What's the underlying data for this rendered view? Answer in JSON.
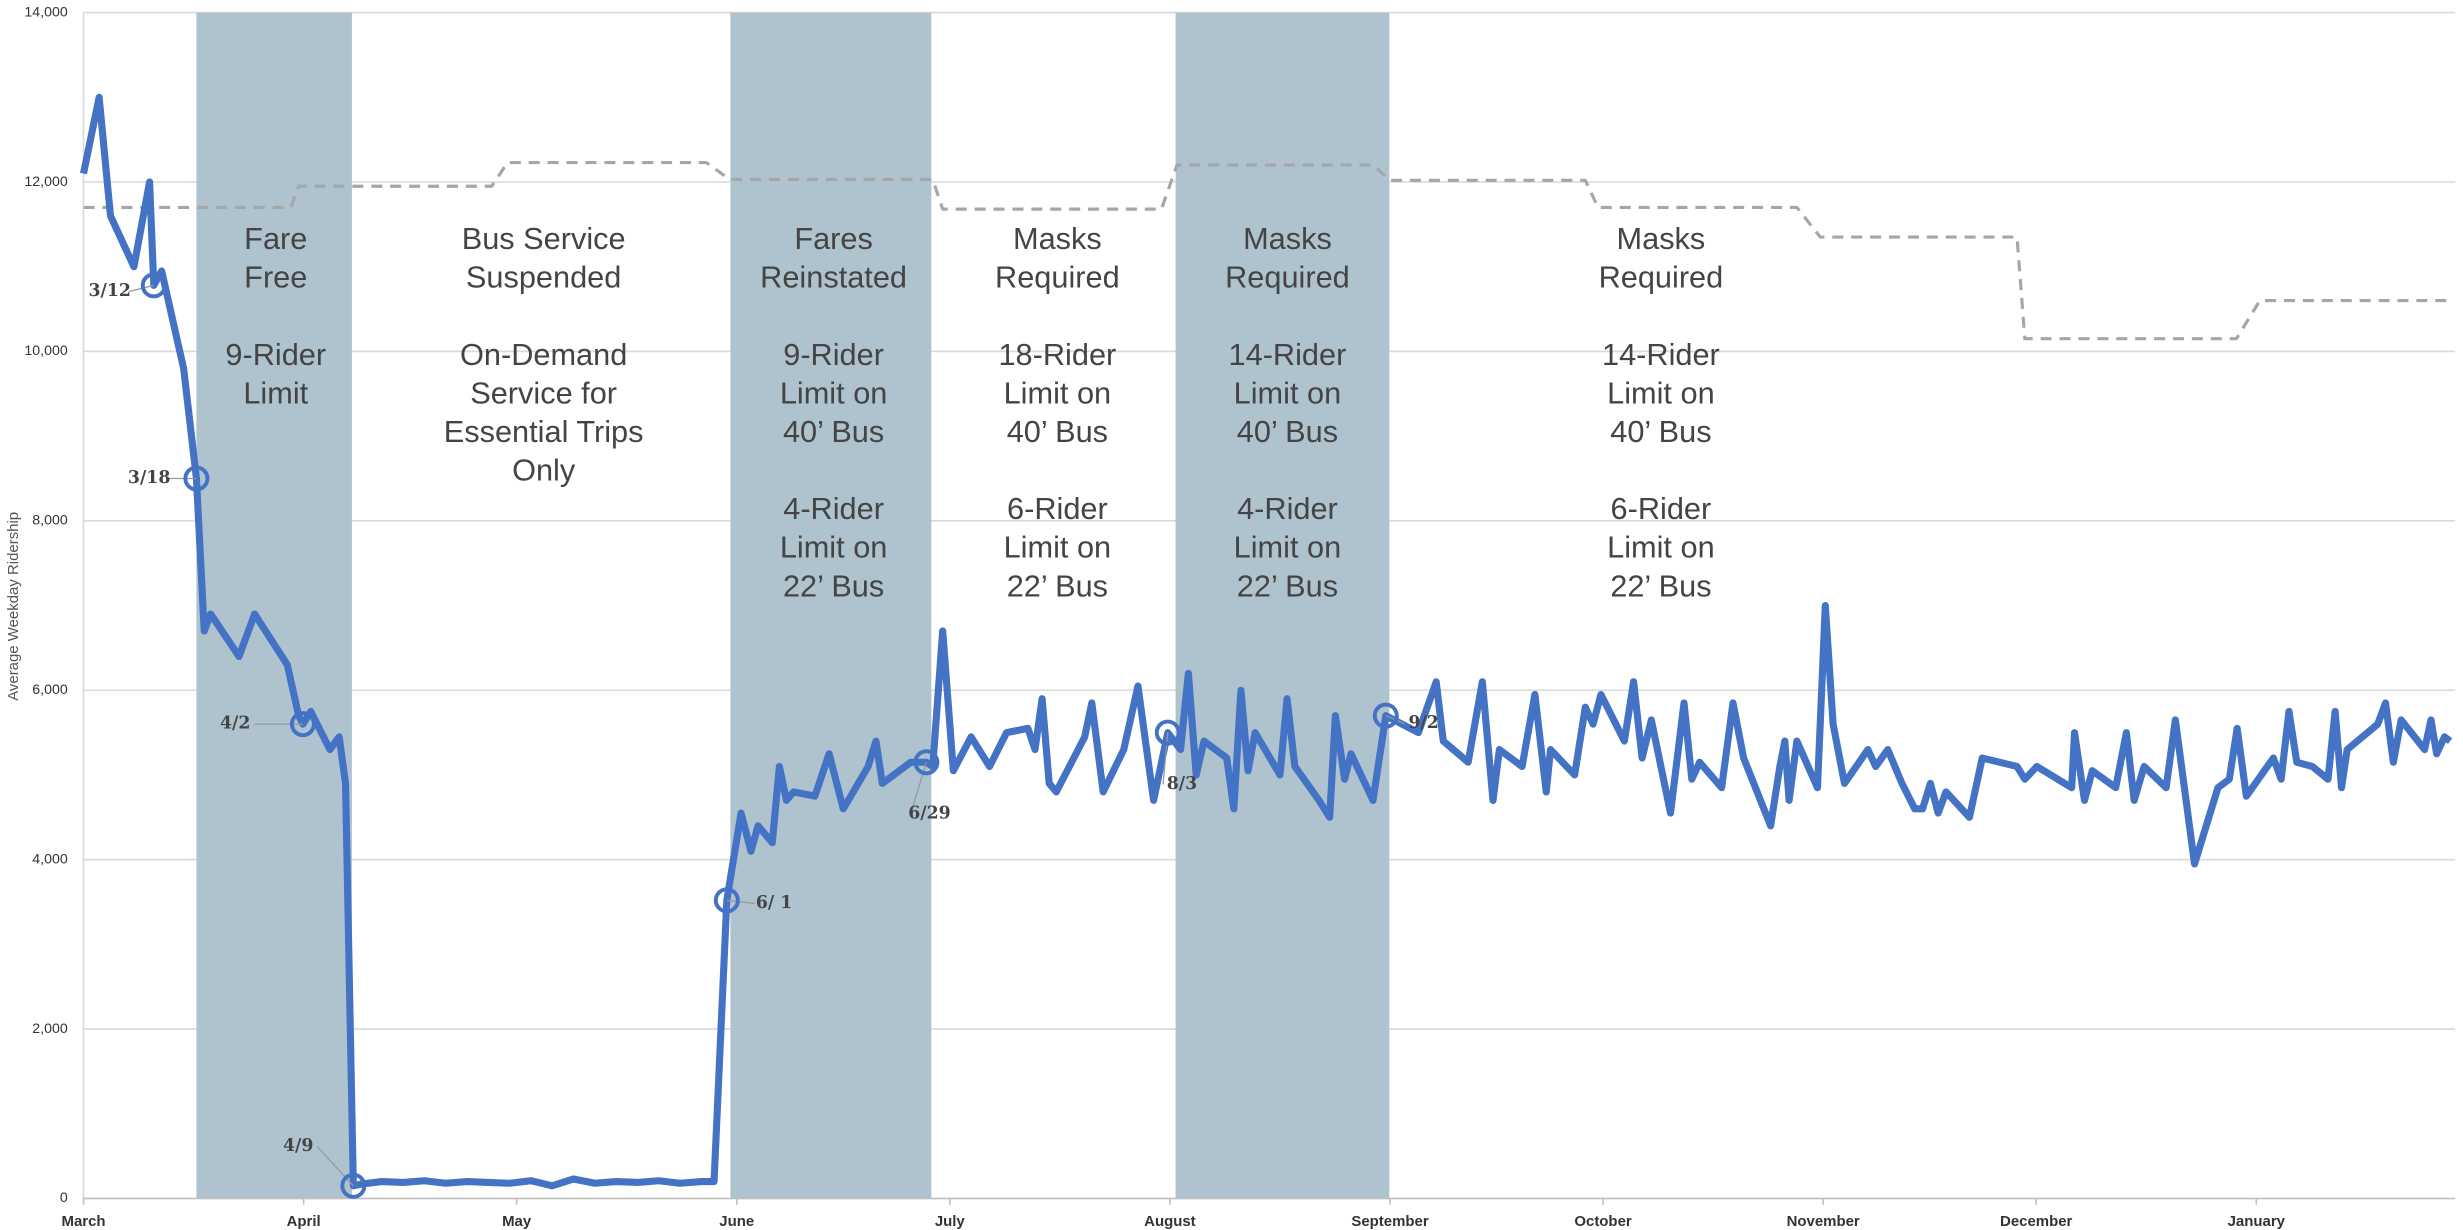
{
  "chart_data": {
    "type": "line",
    "ylabel": "Average Weekday Ridership",
    "xlim": [
      0,
      334
    ],
    "ylim": [
      0,
      14000
    ],
    "xticks": [
      {
        "value": 0,
        "label": "March"
      },
      {
        "value": 31,
        "label": "April"
      },
      {
        "value": 61,
        "label": "May"
      },
      {
        "value": 92,
        "label": "June"
      },
      {
        "value": 122,
        "label": "July"
      },
      {
        "value": 153,
        "label": "August"
      },
      {
        "value": 184,
        "label": "September"
      },
      {
        "value": 214,
        "label": "October"
      },
      {
        "value": 245,
        "label": "November"
      },
      {
        "value": 275,
        "label": "December"
      },
      {
        "value": 306,
        "label": "January"
      }
    ],
    "yticks": [
      0,
      {
        "value": 2000,
        "label": "2,000"
      },
      {
        "value": 4000,
        "label": "4,000"
      },
      {
        "value": 6000,
        "label": "6,000"
      },
      {
        "value": 8000,
        "label": "8,000"
      },
      {
        "value": 10000,
        "label": "10,000"
      },
      {
        "value": 12000,
        "label": "12,000"
      },
      {
        "value": 14000,
        "label": "14,000"
      }
    ],
    "grid": true,
    "shaded_ranges": [
      {
        "start": 15.9,
        "end": 37.8,
        "color": "#aec3ce"
      },
      {
        "start": 91.1,
        "end": 119.4,
        "color": "#aec3ce"
      },
      {
        "start": 153.8,
        "end": 183.9,
        "color": "#aec3ce"
      }
    ],
    "series": [
      {
        "color": "#4472c4",
        "dash": false,
        "x": [
          0,
          2.2,
          3.8,
          7.1,
          9.3,
          9.9,
          11,
          14.1,
          15.9,
          17,
          17.9,
          21.9,
          24.1,
          28.7,
          30.3,
          30.9,
          32,
          34.7,
          36,
          36.9,
          38,
          39.1,
          42,
          45,
          48,
          51,
          54,
          57,
          60,
          63,
          66,
          69,
          72,
          75,
          78,
          81,
          84,
          87,
          88.8,
          90.6,
          92.6,
          94,
          95,
          97,
          98,
          99,
          100,
          103,
          105,
          107,
          110.5,
          111.6,
          112.5,
          116.5,
          118.7,
          119.6,
          121,
          122.5,
          125,
          127.6,
          130,
          133,
          134,
          135,
          136,
          137,
          141,
          142,
          143.6,
          146.5,
          148.5,
          150.7,
          152.7,
          154.5,
          155.6,
          156.7,
          157.8,
          161,
          162,
          163,
          164,
          165,
          168.5,
          169.5,
          170.6,
          174,
          175.5,
          176.3,
          177.6,
          178.5,
          181.6,
          183.4,
          188,
          190.5,
          191.5,
          195,
          197,
          198.5,
          199.4,
          202.6,
          204.4,
          206,
          206.6,
          210,
          211.5,
          212.6,
          213.7,
          217,
          218.3,
          219.5,
          220.8,
          223.5,
          225.4,
          226.5,
          227.6,
          230.7,
          232.3,
          233.8,
          237.6,
          238.9,
          239.6,
          240.2,
          241.3,
          244.2,
          245.3,
          246.4,
          248,
          251.3,
          252.4,
          254.1,
          256.1,
          257.9,
          259,
          260.1,
          261.2,
          262.3,
          265.6,
          267.4,
          272.3,
          273.4,
          275.1,
          280,
          280.4,
          281.8,
          282.9,
          286.2,
          287.7,
          288.8,
          290.2,
          293.3,
          294.6,
          297.3,
          300.6,
          302.2,
          303.3,
          304.6,
          308.4,
          309.5,
          310.6,
          311.7,
          313.9,
          316.1,
          317.1,
          318,
          318.8,
          323.1,
          324.2,
          325.3,
          326.4,
          329.7,
          330.6,
          331.4,
          332.5,
          333.3
        ],
        "values": [
          12100,
          13000,
          11600,
          11000,
          12000,
          10780,
          10950,
          9800,
          8500,
          6700,
          6900,
          6400,
          6900,
          6300,
          5700,
          5600,
          5750,
          5300,
          5450,
          4900,
          150,
          170,
          200,
          190,
          210,
          180,
          200,
          190,
          180,
          210,
          150,
          230,
          180,
          200,
          190,
          210,
          180,
          200,
          200,
          3520,
          4550,
          4100,
          4400,
          4200,
          5100,
          4700,
          4800,
          4750,
          5250,
          4600,
          5100,
          5400,
          4900,
          5150,
          5150,
          5100,
          6700,
          5050,
          5450,
          5100,
          5500,
          5550,
          5300,
          5900,
          4900,
          4800,
          5450,
          5850,
          4800,
          5300,
          6050,
          4700,
          5500,
          5300,
          6200,
          5000,
          5400,
          5200,
          4600,
          6000,
          5050,
          5500,
          5000,
          5900,
          5100,
          4700,
          4500,
          5700,
          4950,
          5250,
          4700,
          5700,
          5500,
          6100,
          5400,
          5150,
          6100,
          4700,
          5300,
          5100,
          5950,
          4800,
          5300,
          5000,
          5800,
          5600,
          5950,
          5400,
          6100,
          5200,
          5650,
          4550,
          5850,
          4950,
          5150,
          4850,
          5850,
          5200,
          4400,
          5100,
          5400,
          4700,
          5400,
          4850,
          7000,
          5600,
          4900,
          5300,
          5100,
          5300,
          4900,
          4600,
          4600,
          4900,
          4550,
          4800,
          4500,
          5200,
          5100,
          4950,
          5100,
          4850,
          5500,
          4700,
          5050,
          4850,
          5500,
          4700,
          5100,
          4850,
          5650,
          3950,
          4850,
          4950,
          5550,
          4750,
          5200,
          4950,
          5750,
          5150,
          5100,
          4950,
          5750,
          4850,
          5300,
          5600,
          5850,
          5150,
          5650,
          5300,
          5650,
          5250,
          5450,
          5400
        ]
      },
      {
        "color": "#a6a6a6",
        "dash": true,
        "x": [
          0,
          29.2,
          30.3,
          57.5,
          59.7,
          87.7,
          91,
          119.6,
          121,
          151.8,
          154,
          181.7,
          183.9,
          211.5,
          213.3,
          241.3,
          244.6,
          272.3,
          273.4,
          303.2,
          306.5,
          333.3
        ],
        "values": [
          11700,
          11700,
          11950,
          11950,
          12230,
          12230,
          12030,
          12030,
          11680,
          11680,
          12200,
          12200,
          12020,
          12020,
          11700,
          11700,
          11350,
          11350,
          10150,
          10150,
          10600,
          10600
        ]
      }
    ],
    "callouts": [
      {
        "label": "3/12",
        "x": 9.9,
        "y": 10780
      },
      {
        "label": "3/18",
        "x": 15.9,
        "y": 8500
      },
      {
        "label": "4/2",
        "x": 30.9,
        "y": 5600
      },
      {
        "label": "4/9",
        "x": 38,
        "y": 150
      },
      {
        "label": "6/ 1",
        "x": 90.6,
        "y": 3520
      },
      {
        "label": "6/29",
        "x": 118.7,
        "y": 5150
      },
      {
        "label": "8/3",
        "x": 152.7,
        "y": 5500
      },
      {
        "label": "9/2",
        "x": 183.4,
        "y": 5700
      }
    ],
    "annotations": [
      {
        "paragraphs": [
          [
            "Fare",
            "Free"
          ],
          [
            "9-Rider",
            "Limit"
          ]
        ]
      },
      {
        "paragraphs": [
          [
            "Bus Service",
            "Suspended"
          ],
          [
            "On-Demand",
            "Service for",
            "Essential Trips",
            "Only"
          ]
        ]
      },
      {
        "paragraphs": [
          [
            "Fares",
            "Reinstated"
          ],
          [
            "9-Rider",
            "Limit on",
            "40’ Bus"
          ],
          [
            "4-Rider",
            "Limit on",
            "22’ Bus"
          ]
        ]
      },
      {
        "paragraphs": [
          [
            "Masks",
            "Required"
          ],
          [
            "18-Rider",
            "Limit on",
            "40’ Bus"
          ],
          [
            "6-Rider",
            "Limit on",
            "22’ Bus"
          ]
        ]
      },
      {
        "paragraphs": [
          [
            "Masks",
            "Required"
          ],
          [
            "14-Rider",
            "Limit on",
            "40’ Bus"
          ],
          [
            "4-Rider",
            "Limit on",
            "22’ Bus"
          ]
        ]
      },
      {
        "paragraphs": [
          [
            "Masks",
            "Required"
          ],
          [
            "14-Rider",
            "Limit on",
            "40’ Bus"
          ],
          [
            "6-Rider",
            "Limit on",
            "22’ Bus"
          ]
        ]
      }
    ]
  }
}
